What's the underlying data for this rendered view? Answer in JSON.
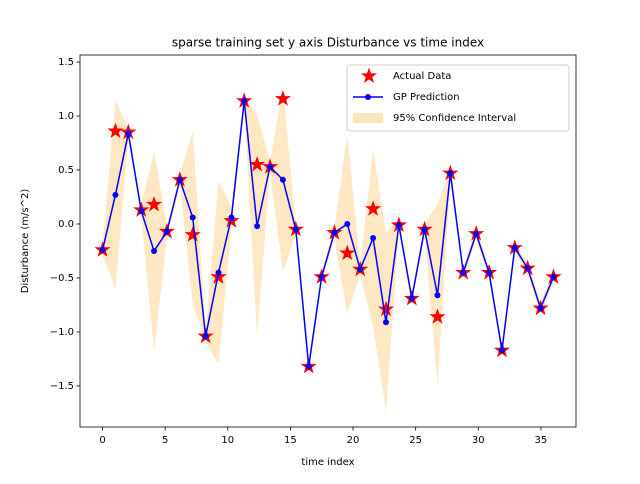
{
  "chart_data": {
    "type": "line",
    "title": "sparse training set y axis Disturbance vs time index",
    "x_label": "time index",
    "y_label": "Disturbance (m/s^2)",
    "x": [
      0,
      1.03,
      2.06,
      3.09,
      4.11,
      5.14,
      6.17,
      7.2,
      8.23,
      9.26,
      10.29,
      11.31,
      12.34,
      13.37,
      14.4,
      15.43,
      16.46,
      17.49,
      18.51,
      19.54,
      20.57,
      21.6,
      22.63,
      23.66,
      24.69,
      25.71,
      26.74,
      27.77,
      28.8,
      29.83,
      30.86,
      31.89,
      32.91,
      33.94,
      34.97,
      36
    ],
    "series": [
      {
        "name": "Actual Data",
        "color": "#ff0000",
        "marker": "star",
        "values": [
          -0.24,
          0.86,
          0.85,
          0.13,
          0.18,
          -0.07,
          0.41,
          -0.1,
          -1.04,
          -0.49,
          0.03,
          1.14,
          0.55,
          0.53,
          1.16,
          -0.05,
          -1.32,
          -0.49,
          -0.08,
          -0.27,
          -0.42,
          0.14,
          -0.79,
          -0.01,
          -0.69,
          -0.05,
          -0.86,
          0.47,
          -0.45,
          -0.09,
          -0.45,
          -1.17,
          -0.22,
          -0.41,
          -0.78,
          -0.49
        ]
      },
      {
        "name": "GP Prediction",
        "color": "#0000ff",
        "marker": "circle",
        "values": [
          -0.24,
          0.27,
          0.84,
          0.12,
          -0.25,
          -0.07,
          0.41,
          0.06,
          -1.04,
          -0.45,
          0.06,
          1.14,
          -0.02,
          0.53,
          0.41,
          -0.05,
          -1.32,
          -0.49,
          -0.08,
          0.0,
          -0.42,
          -0.13,
          -0.91,
          -0.01,
          -0.69,
          -0.05,
          -0.66,
          0.47,
          -0.45,
          -0.09,
          -0.45,
          -1.17,
          -0.22,
          -0.41,
          -0.78,
          -0.49
        ]
      },
      {
        "name": "95% Confidence Interval",
        "color": "#fde6bd",
        "marker": "band",
        "upper": [
          -0.19,
          1.14,
          0.89,
          0.17,
          0.68,
          -0.02,
          0.46,
          0.86,
          -0.99,
          0.4,
          0.16,
          1.19,
          1.01,
          0.58,
          1.26,
          0.0,
          -1.27,
          -0.44,
          -0.03,
          0.83,
          -0.37,
          0.69,
          -0.08,
          0.04,
          -0.64,
          0.0,
          0.18,
          0.52,
          -0.4,
          -0.04,
          -0.4,
          -1.12,
          -0.17,
          -0.36,
          -0.73,
          -0.44
        ],
        "lower": [
          -0.29,
          -0.6,
          0.79,
          0.07,
          -1.18,
          -0.12,
          0.36,
          -0.74,
          -1.09,
          -1.3,
          -0.04,
          1.09,
          -1.05,
          0.48,
          -0.44,
          -0.1,
          -1.37,
          -0.54,
          -0.13,
          -0.83,
          -0.47,
          -0.95,
          -1.74,
          -0.06,
          -0.74,
          -0.1,
          -1.5,
          0.42,
          -0.5,
          -0.14,
          -0.5,
          -1.22,
          -0.27,
          -0.46,
          -0.83,
          -0.54
        ]
      }
    ],
    "xlim": [
      -1.8,
      37.8
    ],
    "ylim": [
      -1.88,
      1.565
    ],
    "xticks": [
      0,
      5,
      10,
      15,
      20,
      25,
      30,
      35
    ],
    "yticks": [
      {
        "value": -1.5,
        "label": "−1.5"
      },
      {
        "value": -1.0,
        "label": "−1.0"
      },
      {
        "value": -0.5,
        "label": "−0.5"
      },
      {
        "value": 0,
        "label": "0.0"
      },
      0.5,
      {
        "value": 1.0,
        "label": "1.0"
      },
      1.5
    ],
    "grid": false,
    "legend": "upper right"
  }
}
